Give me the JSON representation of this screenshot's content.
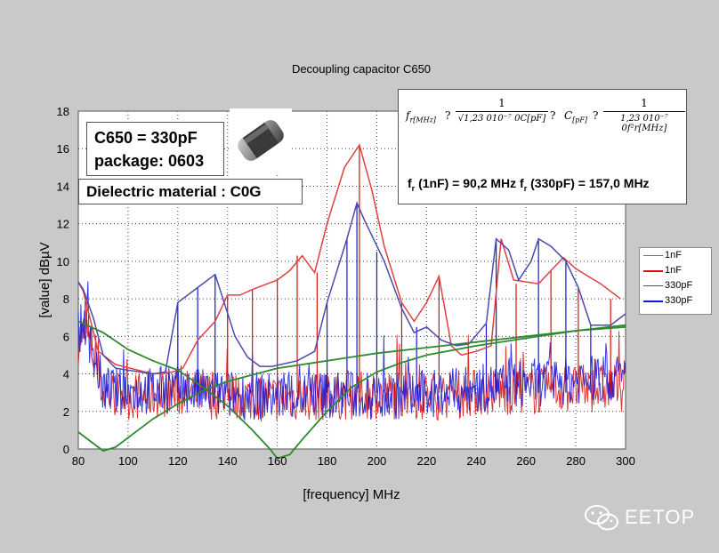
{
  "chart_data": {
    "type": "line",
    "title": "Decoupling capacitor C650",
    "xlabel": "[frequency] MHz",
    "ylabel": "[value] dBµV",
    "xlim": [
      80,
      300
    ],
    "ylim": [
      0,
      18
    ],
    "x_ticks": [
      80,
      100,
      120,
      140,
      160,
      180,
      200,
      220,
      240,
      260,
      280,
      300
    ],
    "y_ticks": [
      0,
      2,
      4,
      6,
      8,
      10,
      12,
      14,
      16,
      18
    ],
    "grid": true,
    "legend_position": "right",
    "series": [
      {
        "name": "1nF",
        "color": "#e04040",
        "style": "peak-envelope",
        "points": [
          [
            80,
            8.9
          ],
          [
            82,
            8.4
          ],
          [
            85,
            6.8
          ],
          [
            88,
            5.2
          ],
          [
            95,
            4.5
          ],
          [
            110,
            4.0
          ],
          [
            118,
            4.1
          ],
          [
            122,
            4.3
          ],
          [
            128,
            5.8
          ],
          [
            135,
            6.8
          ],
          [
            140,
            8.2
          ],
          [
            145,
            8.2
          ],
          [
            150,
            8.5
          ],
          [
            160,
            9.0
          ],
          [
            165,
            9.5
          ],
          [
            170,
            10.3
          ],
          [
            175,
            9.4
          ],
          [
            180,
            12.0
          ],
          [
            187,
            15.0
          ],
          [
            193,
            16.2
          ],
          [
            198,
            13.8
          ],
          [
            203,
            10.8
          ],
          [
            210,
            7.8
          ],
          [
            215,
            6.8
          ],
          [
            220,
            7.8
          ],
          [
            225,
            9.2
          ],
          [
            230,
            5.5
          ],
          [
            234,
            5.0
          ],
          [
            240,
            5.2
          ],
          [
            246,
            5.5
          ],
          [
            250,
            11.2
          ],
          [
            255,
            9.0
          ],
          [
            265,
            8.8
          ],
          [
            270,
            9.5
          ],
          [
            275,
            10.2
          ],
          [
            280,
            9.6
          ],
          [
            290,
            8.8
          ],
          [
            298,
            8.0
          ]
        ]
      },
      {
        "name": "1nF",
        "color": "#d81010",
        "style": "noise-floor",
        "points": [
          [
            80,
            5.8
          ],
          [
            83,
            6.3
          ],
          [
            86,
            5.0
          ],
          [
            90,
            3.0
          ],
          [
            100,
            2.8
          ],
          [
            110,
            2.9
          ],
          [
            120,
            3.0
          ],
          [
            130,
            2.9
          ],
          [
            140,
            2.8
          ],
          [
            160,
            2.7
          ],
          [
            180,
            2.8
          ],
          [
            200,
            2.9
          ],
          [
            220,
            2.8
          ],
          [
            240,
            3.0
          ],
          [
            260,
            3.1
          ],
          [
            280,
            3.2
          ],
          [
            300,
            3.3
          ]
        ]
      },
      {
        "name": "330pF",
        "color": "#4a4ab0",
        "style": "peak-envelope",
        "points": [
          [
            80,
            8.9
          ],
          [
            82,
            8.5
          ],
          [
            86,
            7.0
          ],
          [
            90,
            5.0
          ],
          [
            95,
            4.3
          ],
          [
            110,
            4.0
          ],
          [
            115,
            4.1
          ],
          [
            120,
            7.8
          ],
          [
            128,
            8.6
          ],
          [
            135,
            9.3
          ],
          [
            143,
            6.0
          ],
          [
            148,
            4.9
          ],
          [
            153,
            4.4
          ],
          [
            158,
            4.4
          ],
          [
            168,
            4.7
          ],
          [
            175,
            5.2
          ],
          [
            180,
            7.8
          ],
          [
            188,
            11.2
          ],
          [
            192,
            13.1
          ],
          [
            195,
            12.2
          ],
          [
            203,
            10.0
          ],
          [
            210,
            7.5
          ],
          [
            215,
            6.2
          ],
          [
            220,
            6.5
          ],
          [
            226,
            5.8
          ],
          [
            232,
            5.5
          ],
          [
            237,
            5.6
          ],
          [
            244,
            6.7
          ],
          [
            248,
            11.2
          ],
          [
            253,
            10.6
          ],
          [
            257,
            9.0
          ],
          [
            262,
            10.0
          ],
          [
            265,
            11.2
          ],
          [
            270,
            10.8
          ],
          [
            276,
            10.0
          ],
          [
            281,
            8.6
          ],
          [
            286,
            6.6
          ],
          [
            294,
            6.6
          ],
          [
            300,
            7.2
          ]
        ]
      },
      {
        "name": "330pF",
        "color": "#1616d8",
        "style": "noise-floor",
        "points": [
          [
            80,
            6.2
          ],
          [
            83,
            6.8
          ],
          [
            86,
            5.0
          ],
          [
            90,
            3.2
          ],
          [
            100,
            3.0
          ],
          [
            110,
            3.1
          ],
          [
            120,
            3.2
          ],
          [
            130,
            3.0
          ],
          [
            140,
            2.9
          ],
          [
            160,
            2.8
          ],
          [
            180,
            2.9
          ],
          [
            200,
            2.8
          ],
          [
            220,
            2.9
          ],
          [
            240,
            3.2
          ],
          [
            260,
            3.5
          ],
          [
            280,
            3.7
          ],
          [
            300,
            3.8
          ]
        ]
      },
      {
        "name": "",
        "color": "#2e8a2e",
        "style": "smooth",
        "points": [
          [
            80,
            6.8
          ],
          [
            90,
            6.2
          ],
          [
            100,
            5.3
          ],
          [
            110,
            4.7
          ],
          [
            120,
            4.2
          ],
          [
            130,
            3.3
          ],
          [
            140,
            2.3
          ],
          [
            150,
            1.0
          ],
          [
            157,
            0.0
          ],
          [
            160,
            -0.5
          ],
          [
            165,
            -0.3
          ],
          [
            170,
            0.5
          ],
          [
            180,
            2.0
          ],
          [
            190,
            3.3
          ],
          [
            200,
            4.1
          ],
          [
            210,
            4.6
          ],
          [
            220,
            5.0
          ],
          [
            240,
            5.5
          ],
          [
            260,
            5.9
          ],
          [
            280,
            6.3
          ],
          [
            300,
            6.6
          ]
        ]
      },
      {
        "name": "",
        "color": "#2e8a2e",
        "style": "smooth",
        "points": [
          [
            80,
            0.9
          ],
          [
            85,
            0.4
          ],
          [
            90,
            -0.1
          ],
          [
            95,
            0.1
          ],
          [
            100,
            0.6
          ],
          [
            110,
            1.6
          ],
          [
            120,
            2.4
          ],
          [
            130,
            3.1
          ],
          [
            140,
            3.6
          ],
          [
            160,
            4.3
          ],
          [
            180,
            4.7
          ],
          [
            200,
            5.1
          ],
          [
            220,
            5.4
          ],
          [
            240,
            5.7
          ],
          [
            260,
            6.0
          ],
          [
            280,
            6.3
          ],
          [
            300,
            6.5
          ]
        ]
      }
    ],
    "spikes": [
      {
        "x": 120,
        "peak": 7.8,
        "color": "#1616d8"
      },
      {
        "x": 128,
        "peak": 8.6,
        "color": "#1616d8"
      },
      {
        "x": 135,
        "peak": 9.3,
        "color": "#1616d8"
      },
      {
        "x": 140,
        "peak": 8.2,
        "color": "#d81010"
      },
      {
        "x": 150,
        "peak": 8.5,
        "color": "#d81010"
      },
      {
        "x": 160,
        "peak": 9.0,
        "color": "#d81010"
      },
      {
        "x": 168,
        "peak": 10.3,
        "color": "#d81010"
      },
      {
        "x": 176,
        "peak": 9.4,
        "color": "#d81010"
      },
      {
        "x": 180,
        "peak": 7.8,
        "color": "#1616d8"
      },
      {
        "x": 188,
        "peak": 11.2,
        "color": "#1616d8"
      },
      {
        "x": 192,
        "peak": 13.1,
        "color": "#1616d8"
      },
      {
        "x": 193,
        "peak": 16.2,
        "color": "#d81010"
      },
      {
        "x": 200,
        "peak": 10.5,
        "color": "#1616d8"
      },
      {
        "x": 210,
        "peak": 7.8,
        "color": "#d81010"
      },
      {
        "x": 216,
        "peak": 6.5,
        "color": "#1616d8"
      },
      {
        "x": 225,
        "peak": 9.2,
        "color": "#d81010"
      },
      {
        "x": 244,
        "peak": 6.7,
        "color": "#1616d8"
      },
      {
        "x": 248,
        "peak": 11.2,
        "color": "#1616d8"
      },
      {
        "x": 256,
        "peak": 8.8,
        "color": "#d81010"
      },
      {
        "x": 265,
        "peak": 11.2,
        "color": "#1616d8"
      },
      {
        "x": 270,
        "peak": 9.5,
        "color": "#d81010"
      },
      {
        "x": 276,
        "peak": 10.0,
        "color": "#1616d8"
      },
      {
        "x": 281,
        "peak": 8.6,
        "color": "#d81010"
      },
      {
        "x": 286,
        "peak": 6.6,
        "color": "#1616d8"
      },
      {
        "x": 294,
        "peak": 8.0,
        "color": "#d81010"
      }
    ]
  },
  "info_box": {
    "line1": "C650 = 330pF",
    "line2": "package: 0603"
  },
  "dielectric_box": {
    "text": "Dielectric material : C0G"
  },
  "formula_box": {
    "eq1_lhs": "f",
    "eq1_lhs_sub": "r[MHz]",
    "eq1_rel": "?",
    "eq1_num": "1",
    "eq1_den": "√1,23 010⁻⁷ 0C[pF]",
    "eq1_tail": "?",
    "eq2_lhs": "C",
    "eq2_lhs_sub": "[pF]",
    "eq2_rel": "?",
    "eq2_num": "1",
    "eq2_den": "1,23 010⁻⁷ 0f²r[MHz]",
    "result_a_label": "f",
    "result_a_sub": "r",
    "result_a_text": " (1nF) = 90,2 MHz ",
    "result_b_label": "f",
    "result_b_sub": "r",
    "result_b_text": " (330pF) = 157,0 MHz"
  },
  "legend": {
    "items": [
      {
        "label": "1nF",
        "color": "#e04040",
        "width": 1
      },
      {
        "label": "1nF",
        "color": "#d81010",
        "width": 2
      },
      {
        "label": "330pF",
        "color": "#4a4ab0",
        "width": 1
      },
      {
        "label": "330pF",
        "color": "#1616d8",
        "width": 2
      }
    ]
  },
  "watermark": {
    "text": "EETOP",
    "icon": "wechat-icon"
  }
}
